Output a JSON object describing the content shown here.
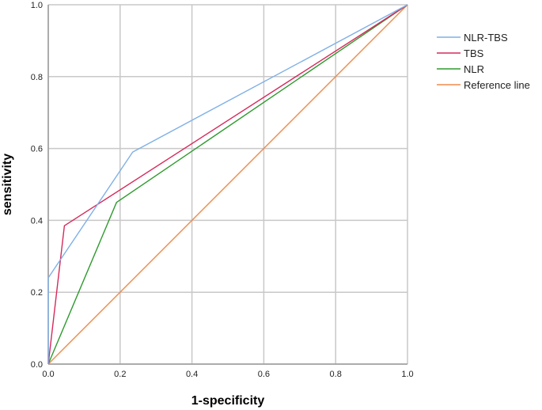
{
  "chart_data": {
    "type": "line",
    "title": "",
    "xlabel": "1-specificity",
    "ylabel": "sensitivity",
    "xlim": [
      0,
      1
    ],
    "ylim": [
      0,
      1
    ],
    "x_ticks": [
      "0.0",
      "0.2",
      "0.4",
      "0.6",
      "0.8",
      "1.0"
    ],
    "y_ticks": [
      "0.0",
      "0.2",
      "0.4",
      "0.6",
      "0.8",
      "1.0"
    ],
    "grid": true,
    "legend_position": "top-right, outside plot",
    "series": [
      {
        "name": "NLR-TBS",
        "color": "#7fb0e6",
        "points": [
          [
            0,
            0
          ],
          [
            0,
            0.24
          ],
          [
            0.235,
            0.59
          ],
          [
            1,
            1
          ]
        ]
      },
      {
        "name": "TBS",
        "color": "#d6295b",
        "points": [
          [
            0,
            0
          ],
          [
            0.045,
            0.385
          ],
          [
            1,
            1
          ]
        ]
      },
      {
        "name": "NLR",
        "color": "#2e9a2e",
        "points": [
          [
            0,
            0
          ],
          [
            0.19,
            0.45
          ],
          [
            1,
            1
          ]
        ]
      },
      {
        "name": "Reference line",
        "color": "#f08a4b",
        "points": [
          [
            0,
            0
          ],
          [
            1,
            1
          ]
        ]
      }
    ]
  }
}
